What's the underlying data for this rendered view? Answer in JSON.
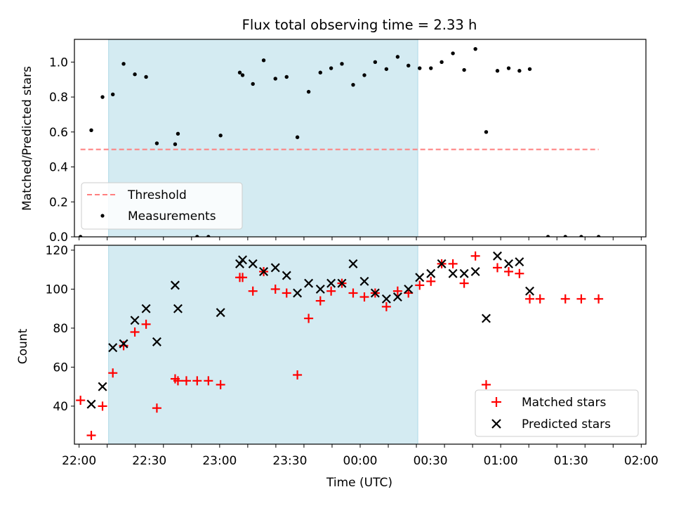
{
  "title": "Flux total observing time = 2.33 h",
  "chart_data": [
    {
      "type": "scatter",
      "ylabel": "Matched/Predicted stars",
      "xlabel": "",
      "ylim": [
        0,
        1.13
      ],
      "yticks": [
        0.0,
        0.2,
        0.4,
        0.6,
        0.8,
        1.0
      ],
      "ytick_labels": [
        "0.0",
        "0.2",
        "0.4",
        "0.6",
        "0.8",
        "1.0"
      ],
      "xlim_minutes": [
        -10,
        1210
      ],
      "xticks": [
        0,
        60,
        120,
        180,
        240,
        300,
        360,
        420,
        480,
        540,
        600,
        660,
        720,
        780,
        840,
        900,
        960,
        1020,
        1080,
        1140,
        1200
      ],
      "shaded_interval": [
        63,
        723
      ],
      "shaded_color": "#add8e6",
      "threshold": {
        "name": "Threshold",
        "y": 0.5,
        "x_range": [
          3,
          1109
        ],
        "color": "#ff7f7f"
      },
      "legend": {
        "placement": "lower-left",
        "entries": [
          "Threshold",
          "Measurements"
        ]
      },
      "series": [
        {
          "name": "Measurements",
          "color": "#000000",
          "points": [
            [
              3,
              0.0
            ],
            [
              26,
              0.61
            ],
            [
              50,
              0.8
            ],
            [
              72,
              0.815
            ],
            [
              95,
              0.99
            ],
            [
              119,
              0.93
            ],
            [
              143,
              0.915
            ],
            [
              166,
              0.535
            ],
            [
              205,
              0.53
            ],
            [
              211,
              0.59
            ],
            [
              252,
              0.0
            ],
            [
              276,
              0.0
            ],
            [
              302,
              0.58
            ],
            [
              343,
              0.94
            ],
            [
              349,
              0.925
            ],
            [
              371,
              0.875
            ],
            [
              394,
              1.01
            ],
            [
              419,
              0.905
            ],
            [
              443,
              0.915
            ],
            [
              466,
              0.57
            ],
            [
              490,
              0.83
            ],
            [
              515,
              0.94
            ],
            [
              538,
              0.965
            ],
            [
              561,
              0.99
            ],
            [
              585,
              0.87
            ],
            [
              609,
              0.925
            ],
            [
              632,
              1.0
            ],
            [
              656,
              0.96
            ],
            [
              680,
              1.03
            ],
            [
              703,
              0.98
            ],
            [
              727,
              0.965
            ],
            [
              751,
              0.965
            ],
            [
              774,
              1.0
            ],
            [
              798,
              1.05
            ],
            [
              822,
              0.955
            ],
            [
              846,
              1.075
            ],
            [
              869,
              0.6
            ],
            [
              893,
              0.95
            ],
            [
              917,
              0.965
            ],
            [
              940,
              0.95
            ],
            [
              962,
              0.96
            ],
            [
              1001,
              0.0
            ],
            [
              1038,
              0.0
            ],
            [
              1072,
              0.0
            ],
            [
              1109,
              0.0
            ]
          ]
        }
      ]
    },
    {
      "type": "scatter",
      "ylabel": "Count",
      "xlabel": "Time (UTC)",
      "ylim": [
        20.5,
        122.5
      ],
      "yticks": [
        40,
        60,
        80,
        100,
        120
      ],
      "ytick_labels": [
        "40",
        "60",
        "80",
        "100",
        "120"
      ],
      "xlim_minutes": [
        -10,
        1210
      ],
      "xticks": [
        0,
        60,
        120,
        180,
        240,
        300,
        360,
        420,
        480,
        540,
        600,
        660,
        720,
        780,
        840,
        900,
        960,
        1020,
        1080,
        1140,
        1200
      ],
      "xtick_labels": [
        "22:00",
        "22:30",
        "23:00",
        "23:30",
        "00:00",
        "00:30",
        "01:00",
        "01:30",
        "02:00"
      ],
      "xtick_label_minutes": [
        0,
        150,
        300,
        450,
        600,
        750,
        900,
        1050,
        1200
      ],
      "shaded_interval": [
        63,
        723
      ],
      "shaded_color": "#add8e6",
      "legend": {
        "placement": "lower-right",
        "entries": [
          "Matched stars",
          "Predicted stars"
        ]
      },
      "series": [
        {
          "name": "Matched stars",
          "marker": "plus",
          "color": "#ff0000",
          "points": [
            [
              3,
              43
            ],
            [
              26,
              25
            ],
            [
              50,
              40
            ],
            [
              72,
              57
            ],
            [
              95,
              71
            ],
            [
              119,
              78
            ],
            [
              143,
              82
            ],
            [
              166,
              39
            ],
            [
              205,
              54
            ],
            [
              211,
              53
            ],
            [
              229,
              53
            ],
            [
              252,
              53
            ],
            [
              276,
              53
            ],
            [
              302,
              51
            ],
            [
              343,
              106
            ],
            [
              349,
              106
            ],
            [
              371,
              99
            ],
            [
              394,
              109
            ],
            [
              419,
              100
            ],
            [
              443,
              98
            ],
            [
              466,
              56
            ],
            [
              490,
              85
            ],
            [
              515,
              94
            ],
            [
              538,
              99
            ],
            [
              561,
              103
            ],
            [
              585,
              98
            ],
            [
              609,
              96
            ],
            [
              632,
              98
            ],
            [
              656,
              91
            ],
            [
              680,
              99
            ],
            [
              703,
              98
            ],
            [
              727,
              102
            ],
            [
              751,
              104
            ],
            [
              774,
              113
            ],
            [
              798,
              113
            ],
            [
              822,
              103
            ],
            [
              846,
              117
            ],
            [
              869,
              51
            ],
            [
              893,
              111
            ],
            [
              917,
              109
            ],
            [
              940,
              108
            ],
            [
              962,
              95
            ],
            [
              984,
              95
            ],
            [
              1038,
              95
            ],
            [
              1072,
              95
            ],
            [
              1109,
              95
            ]
          ]
        },
        {
          "name": "Predicted stars",
          "marker": "x",
          "color": "#000000",
          "points": [
            [
              26,
              41
            ],
            [
              50,
              50
            ],
            [
              72,
              70
            ],
            [
              95,
              72
            ],
            [
              119,
              84
            ],
            [
              143,
              90
            ],
            [
              166,
              73
            ],
            [
              205,
              102
            ],
            [
              211,
              90
            ],
            [
              302,
              88
            ],
            [
              343,
              113
            ],
            [
              349,
              115
            ],
            [
              371,
              113
            ],
            [
              394,
              109
            ],
            [
              419,
              111
            ],
            [
              443,
              107
            ],
            [
              466,
              98
            ],
            [
              490,
              103
            ],
            [
              515,
              100
            ],
            [
              538,
              103
            ],
            [
              561,
              103
            ],
            [
              585,
              113
            ],
            [
              609,
              104
            ],
            [
              632,
              98
            ],
            [
              656,
              95
            ],
            [
              680,
              96
            ],
            [
              703,
              100
            ],
            [
              727,
              106
            ],
            [
              751,
              108
            ],
            [
              774,
              113
            ],
            [
              798,
              108
            ],
            [
              822,
              108
            ],
            [
              846,
              109
            ],
            [
              869,
              85
            ],
            [
              893,
              117
            ],
            [
              917,
              113
            ],
            [
              940,
              114
            ],
            [
              962,
              99
            ]
          ]
        }
      ]
    }
  ]
}
